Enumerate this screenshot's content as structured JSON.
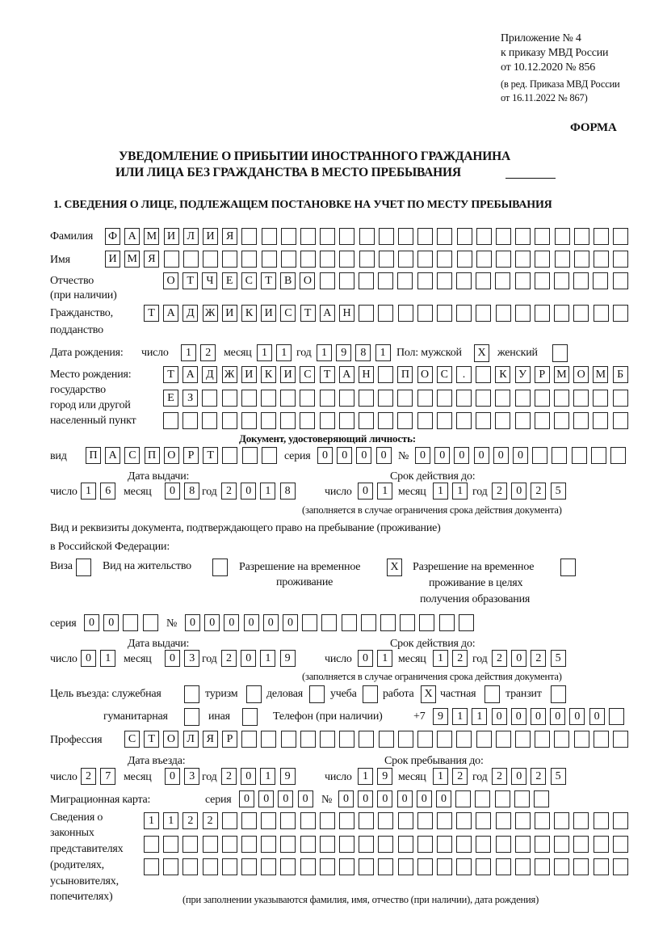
{
  "header": {
    "appendix": "Приложение № 4",
    "order": "к приказу МВД России",
    "order_date": "от 10.12.2020 № 856",
    "edition": "(в ред. Приказа МВД России",
    "edition_date": "от 16.11.2022 № 867)",
    "form_label": "ФОРМА",
    "title_line1": "УВЕДОМЛЕНИЕ О ПРИБЫТИИ ИНОСТРАННОГО ГРАЖДАНИНА",
    "title_line2": "ИЛИ ЛИЦА БЕЗ ГРАЖДАНСТВА В МЕСТО ПРЕБЫВАНИЯ",
    "section1": "1. СВЕДЕНИЯ О ЛИЦЕ, ПОДЛЕЖАЩЕМ ПОСТАНОВКЕ НА УЧЕТ ПО МЕСТУ ПРЕБЫВАНИЯ"
  },
  "labels": {
    "surname": "Фамилия",
    "name": "Имя",
    "patronymic": "Отчество",
    "patronymic_note": "(при наличии)",
    "citizenship": "Гражданство,",
    "citizenship2": "подданство",
    "birth_date": "Дата рождения:",
    "day": "число",
    "month": "месяц",
    "year": "год",
    "sex": "Пол: мужской",
    "female": "женский",
    "birthplace": "Место рождения:",
    "birthplace_state": "государство",
    "birthplace_city": "город или другой",
    "birthplace_city2": "населенный пункт",
    "id_doc": "Документ, удостоверяющий личность:",
    "kind": "вид",
    "series": "серия",
    "number": "№",
    "issue_date": "Дата выдачи:",
    "valid_until": "Срок действия до:",
    "validity_note": "(заполняется в случае ограничения срока действия документа)",
    "stay_doc": "Вид и реквизиты документа, подтверждающего право на пребывание (проживание)",
    "stay_doc2": "в Российской Федерации:",
    "visa": "Виза",
    "residence": "Вид на жительство",
    "temp_permit": "Разрешение на временное",
    "temp_permit2": "проживание",
    "edu_permit": "Разрешение на временное",
    "edu_permit2": "проживание в целях",
    "edu_permit3": "получения образования",
    "purpose": "Цель въезда: служебная",
    "tourism": "туризм",
    "business": "деловая",
    "study": "учеба",
    "work": "работа",
    "private": "частная",
    "transit": "транзит",
    "humanitarian": "гуманитарная",
    "other": "иная",
    "phone": "Телефон (при наличии)",
    "phone_prefix": "+7",
    "profession": "Профессия",
    "entry_date": "Дата въезда:",
    "stay_until": "Срок пребывания до:",
    "migration_card": "Миграционная карта:",
    "reps1": "Сведения о",
    "reps2": "законных",
    "reps3": "представителях",
    "reps4": "(родителях,",
    "reps5": "усыновителях,",
    "reps6": "попечителях)",
    "reps_note": "(при заполнении указываются фамилия, имя, отчество (при наличии), дата рождения)"
  },
  "person": {
    "surname": "ФАМИЛИЯ",
    "name": "ИМЯ",
    "patronymic": "ОТЧЕСТВО",
    "citizenship": "ТАДЖИКИСТАН",
    "birth_day": "12",
    "birth_month": "11",
    "birth_year": "1981",
    "sex_male": "X",
    "sex_female": "",
    "birthplace_row1": "ТАДЖИКИСТАН ПОС. КУРМОМБ",
    "birthplace_row2": "ЕЗ",
    "birthplace_row3": "",
    "doc_kind": "ПАСПОРТ",
    "doc_series": "0000",
    "doc_number": "000000",
    "doc_issue_day": "16",
    "doc_issue_month": "08",
    "doc_issue_year": "2018",
    "doc_valid_day": "01",
    "doc_valid_month": "11",
    "doc_valid_year": "2025",
    "stay_visa": "",
    "stay_residence": "",
    "stay_temp_permit": "X",
    "stay_edu_permit": "",
    "stay_series": "00",
    "stay_number": "000000",
    "stay_issue_day": "01",
    "stay_issue_month": "03",
    "stay_issue_year": "2019",
    "stay_valid_day": "01",
    "stay_valid_month": "12",
    "stay_valid_year": "2025",
    "purpose_official": "",
    "purpose_tourism": "",
    "purpose_business": "",
    "purpose_study": "",
    "purpose_work": "X",
    "purpose_private": "",
    "purpose_transit": "",
    "purpose_humanitarian": "",
    "purpose_other": "",
    "phone": "911000000",
    "profession": "СТОЛЯР",
    "entry_day": "27",
    "entry_month": "03",
    "entry_year": "2019",
    "stay_until_day": "19",
    "stay_until_month": "12",
    "stay_until_year": "2025",
    "mig_series": "0000",
    "mig_number": "000000",
    "reps_row1": "1122",
    "reps_row2": "",
    "reps_row3": ""
  }
}
